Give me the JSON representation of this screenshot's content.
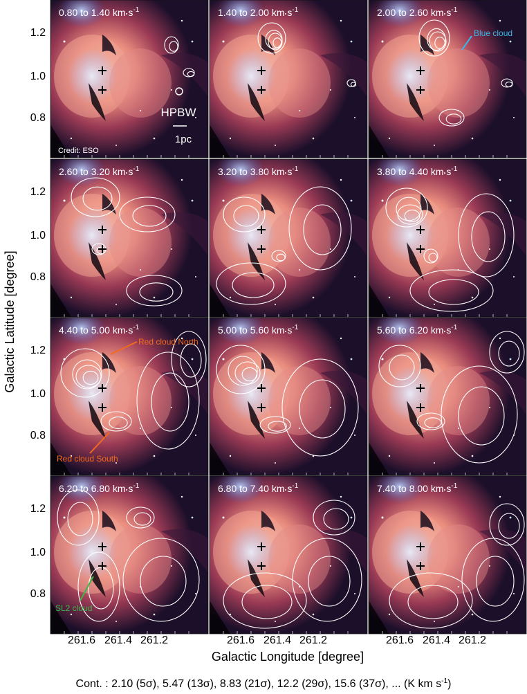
{
  "panels": [
    {
      "title": "0.80 to 1.40 km s",
      "sup": "-1"
    },
    {
      "title": "1.40 to 2.00 km s",
      "sup": "-1"
    },
    {
      "title": "2.00 to 2.60 km s",
      "sup": "-1"
    },
    {
      "title": "2.60 to 3.20 km s",
      "sup": "-1"
    },
    {
      "title": "3.20 to 3.80 km s",
      "sup": "-1"
    },
    {
      "title": "3.80 to 4.40 km s",
      "sup": "-1"
    },
    {
      "title": "4.40 to 5.00 km s",
      "sup": "-1"
    },
    {
      "title": "5.00 to 5.60 km s",
      "sup": "-1"
    },
    {
      "title": "5.60 to 6.20 km s",
      "sup": "-1"
    },
    {
      "title": "6.20 to 6.80 km s",
      "sup": "-1"
    },
    {
      "title": "6.80 to 7.40 km s",
      "sup": "-1"
    },
    {
      "title": "7.40 to 8.00 km s",
      "sup": "-1"
    }
  ],
  "axes": {
    "ylabel": "Galactic Latitude [degree]",
    "xlabel": "Galactic Longitude [degree]",
    "yticks": [
      "1.2",
      "1.0",
      "0.8"
    ],
    "xticks": [
      "261.6",
      "261.4",
      "261.2"
    ]
  },
  "annotations": {
    "hpbw": "HPBW",
    "scale": "1pc",
    "credit": "Credit: ESO",
    "blue_cloud": "Blue cloud",
    "red_north": "Red cloud North",
    "red_south": "Red cloud South",
    "sl2": "SL2 cloud"
  },
  "colors": {
    "blue_cloud": "#39b6e8",
    "red_cloud": "#f26a1f",
    "sl2_cloud": "#3fb54a",
    "contour": "#ffffff"
  },
  "caption": {
    "prefix": "Cont. : 2.10 (5",
    "p1": "), 5.47 (13",
    "p2": "), 8.83 (21",
    "p3": "), 12.2 (29",
    "p4": "), 15.6 (37",
    "p5": "), ... (K km s",
    "p6": ")",
    "sigma": "σ",
    "sup": "-1"
  }
}
